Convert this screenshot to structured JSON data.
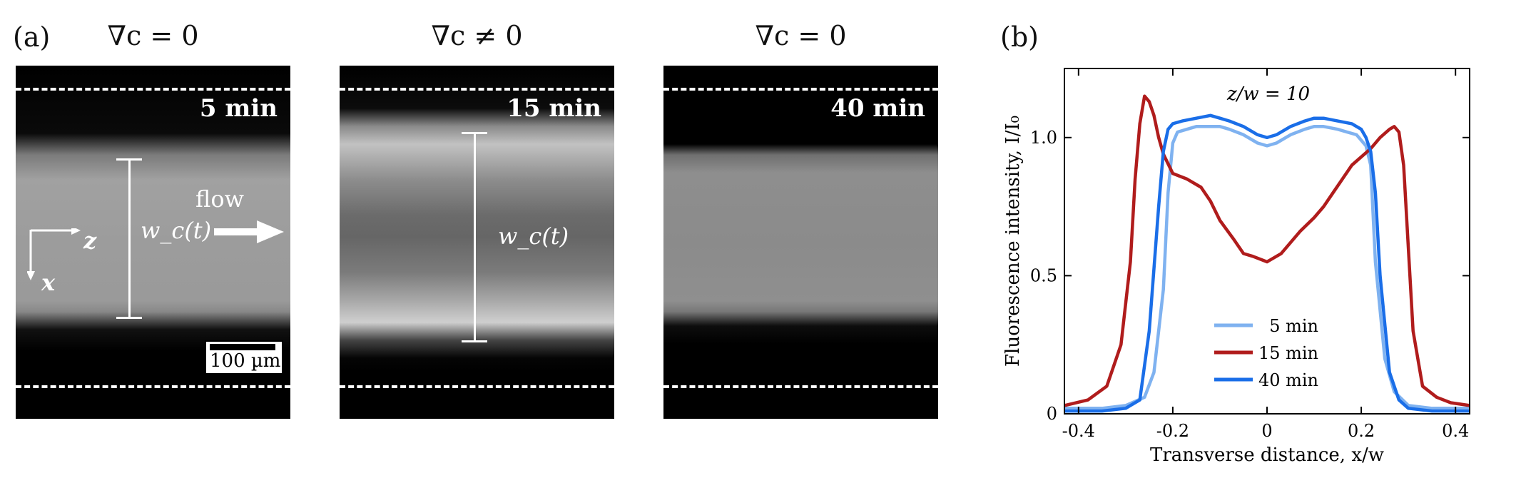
{
  "panel_labels": {
    "a": "(a)",
    "b": "(b)"
  },
  "micrographs": [
    {
      "heading": "∇c = 0",
      "time": "5 min",
      "wc_label": "w_c(t)",
      "flow_label": "flow",
      "axis_z": "z",
      "axis_x": "x",
      "scale_label": "100 µm"
    },
    {
      "heading": "∇c ≠ 0",
      "time": "15 min",
      "wc_label": "w_c(t)"
    },
    {
      "heading": "∇c = 0",
      "time": "40 min"
    }
  ],
  "colors": {
    "5 min": "#7fb2f0",
    "15 min": "#b01c1c",
    "40 min": "#1a6ee8"
  },
  "chart_data": {
    "type": "line",
    "title": "",
    "annotation": "z/w = 10",
    "xlabel": "Transverse distance, x/w",
    "ylabel": "Fluorescence intensity, I/I₀",
    "xlim": [
      -0.43,
      0.43
    ],
    "ylim": [
      0,
      1.25
    ],
    "xticks": [
      "-0.4",
      "-0.2",
      "0",
      "0.2",
      "0.4"
    ],
    "yticks": [
      "0",
      "0.5",
      "1.0"
    ],
    "legend_position": "bottom-center",
    "series": [
      {
        "name": "5 min",
        "color": "#7fb2f0",
        "x": [
          -0.43,
          -0.35,
          -0.3,
          -0.26,
          -0.24,
          -0.22,
          -0.21,
          -0.2,
          -0.19,
          -0.17,
          -0.15,
          -0.12,
          -0.1,
          -0.08,
          -0.05,
          -0.02,
          0,
          0.02,
          0.05,
          0.08,
          0.1,
          0.12,
          0.15,
          0.17,
          0.19,
          0.21,
          0.22,
          0.23,
          0.25,
          0.27,
          0.3,
          0.35,
          0.43
        ],
        "y": [
          0.02,
          0.02,
          0.03,
          0.06,
          0.15,
          0.45,
          0.8,
          0.98,
          1.02,
          1.03,
          1.04,
          1.04,
          1.04,
          1.03,
          1.01,
          0.98,
          0.97,
          0.98,
          1.01,
          1.03,
          1.04,
          1.04,
          1.03,
          1.02,
          1.01,
          0.97,
          0.9,
          0.55,
          0.2,
          0.08,
          0.03,
          0.02,
          0.02
        ]
      },
      {
        "name": "15 min",
        "color": "#b01c1c",
        "x": [
          -0.43,
          -0.38,
          -0.34,
          -0.31,
          -0.29,
          -0.28,
          -0.27,
          -0.26,
          -0.25,
          -0.24,
          -0.23,
          -0.22,
          -0.2,
          -0.17,
          -0.14,
          -0.12,
          -0.1,
          -0.07,
          -0.05,
          -0.03,
          0,
          0.03,
          0.05,
          0.07,
          0.1,
          0.12,
          0.14,
          0.16,
          0.18,
          0.2,
          0.22,
          0.24,
          0.26,
          0.27,
          0.28,
          0.29,
          0.3,
          0.31,
          0.33,
          0.36,
          0.39,
          0.43
        ],
        "y": [
          0.03,
          0.05,
          0.1,
          0.25,
          0.55,
          0.85,
          1.05,
          1.15,
          1.13,
          1.08,
          1.0,
          0.94,
          0.87,
          0.85,
          0.82,
          0.77,
          0.7,
          0.63,
          0.58,
          0.57,
          0.55,
          0.58,
          0.62,
          0.66,
          0.71,
          0.75,
          0.8,
          0.85,
          0.9,
          0.93,
          0.96,
          1.0,
          1.03,
          1.04,
          1.02,
          0.9,
          0.6,
          0.3,
          0.1,
          0.06,
          0.04,
          0.03
        ]
      },
      {
        "name": "40 min",
        "color": "#1a6ee8",
        "x": [
          -0.43,
          -0.35,
          -0.3,
          -0.27,
          -0.25,
          -0.23,
          -0.22,
          -0.21,
          -0.2,
          -0.18,
          -0.15,
          -0.12,
          -0.1,
          -0.08,
          -0.05,
          -0.02,
          0,
          0.02,
          0.05,
          0.08,
          0.1,
          0.12,
          0.15,
          0.18,
          0.2,
          0.21,
          0.22,
          0.23,
          0.24,
          0.26,
          0.28,
          0.3,
          0.35,
          0.43
        ],
        "y": [
          0.01,
          0.01,
          0.02,
          0.05,
          0.3,
          0.75,
          0.95,
          1.03,
          1.05,
          1.06,
          1.07,
          1.08,
          1.07,
          1.06,
          1.04,
          1.01,
          1.0,
          1.01,
          1.04,
          1.06,
          1.07,
          1.07,
          1.06,
          1.05,
          1.03,
          1.0,
          0.95,
          0.8,
          0.5,
          0.15,
          0.05,
          0.02,
          0.01,
          0.01
        ]
      }
    ]
  }
}
